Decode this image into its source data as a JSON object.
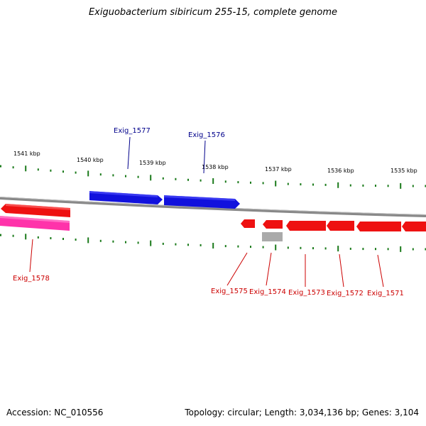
{
  "title": "Exiguobacterium sibiricum 255-15, complete genome",
  "footer": {
    "accession": "Accession: NC_010556",
    "summary": "Topology: circular; Length: 3,034,136 bp; Genes: 3,104"
  },
  "colors": {
    "forward_gene": "#1111dd",
    "reverse_gene": "#ee1111",
    "pseudo_gene": "#ff33aa",
    "other_feature": "#aaaaaa",
    "backbone": "#888888",
    "tick": "#1a7a1a",
    "forward_label": "#00008b",
    "reverse_label": "#cc0000"
  },
  "scale": {
    "labels": [
      "1541 kbp",
      "1540 kbp",
      "1539 kbp",
      "1538 kbp",
      "1537 kbp",
      "1536 kbp",
      "1535 kbp"
    ]
  },
  "genes": {
    "forward": [
      {
        "id": "exig-1577",
        "label": "Exig_1577"
      },
      {
        "id": "exig-1576",
        "label": "Exig_1576"
      }
    ],
    "reverse": [
      {
        "id": "exig-1578",
        "label": "Exig_1578"
      },
      {
        "id": "exig-1575",
        "label": "Exig_1575"
      },
      {
        "id": "exig-1574",
        "label": "Exig_1574"
      },
      {
        "id": "exig-1573",
        "label": "Exig_1573"
      },
      {
        "id": "exig-1572",
        "label": "Exig_1572"
      },
      {
        "id": "exig-1571",
        "label": "Exig_1571"
      }
    ]
  }
}
